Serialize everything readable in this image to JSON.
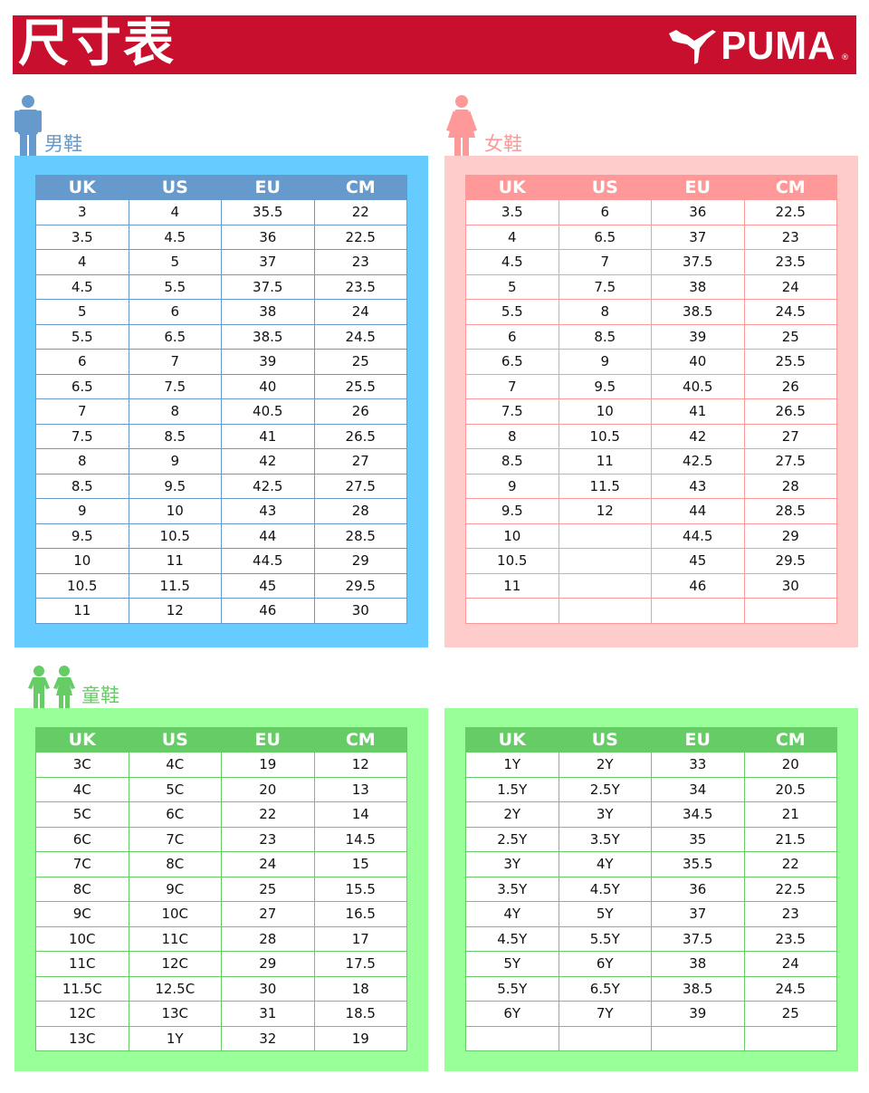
{
  "header": {
    "title": "尺寸表",
    "logo": "PUMA",
    "logo_mark": "®",
    "bg": "#c8102e"
  },
  "columns": [
    "UK",
    "US",
    "EU",
    "CM"
  ],
  "men": {
    "label": "男鞋",
    "panel_color": "#66ccff",
    "header_color": "#6699cc",
    "rows": [
      [
        "3",
        "4",
        "35.5",
        "22"
      ],
      [
        "3.5",
        "4.5",
        "36",
        "22.5"
      ],
      [
        "4",
        "5",
        "37",
        "23"
      ],
      [
        "4.5",
        "5.5",
        "37.5",
        "23.5"
      ],
      [
        "5",
        "6",
        "38",
        "24"
      ],
      [
        "5.5",
        "6.5",
        "38.5",
        "24.5"
      ],
      [
        "6",
        "7",
        "39",
        "25"
      ],
      [
        "6.5",
        "7.5",
        "40",
        "25.5"
      ],
      [
        "7",
        "8",
        "40.5",
        "26"
      ],
      [
        "7.5",
        "8.5",
        "41",
        "26.5"
      ],
      [
        "8",
        "9",
        "42",
        "27"
      ],
      [
        "8.5",
        "9.5",
        "42.5",
        "27.5"
      ],
      [
        "9",
        "10",
        "43",
        "28"
      ],
      [
        "9.5",
        "10.5",
        "44",
        "28.5"
      ],
      [
        "10",
        "11",
        "44.5",
        "29"
      ],
      [
        "10.5",
        "11.5",
        "45",
        "29.5"
      ],
      [
        "11",
        "12",
        "46",
        "30"
      ]
    ]
  },
  "women": {
    "label": "女鞋",
    "panel_color": "#ffcccc",
    "header_color": "#ff9999",
    "rows": [
      [
        "3.5",
        "6",
        "36",
        "22.5"
      ],
      [
        "4",
        "6.5",
        "37",
        "23"
      ],
      [
        "4.5",
        "7",
        "37.5",
        "23.5"
      ],
      [
        "5",
        "7.5",
        "38",
        "24"
      ],
      [
        "5.5",
        "8",
        "38.5",
        "24.5"
      ],
      [
        "6",
        "8.5",
        "39",
        "25"
      ],
      [
        "6.5",
        "9",
        "40",
        "25.5"
      ],
      [
        "7",
        "9.5",
        "40.5",
        "26"
      ],
      [
        "7.5",
        "10",
        "41",
        "26.5"
      ],
      [
        "8",
        "10.5",
        "42",
        "27"
      ],
      [
        "8.5",
        "11",
        "42.5",
        "27.5"
      ],
      [
        "9",
        "11.5",
        "43",
        "28"
      ],
      [
        "9.5",
        "12",
        "44",
        "28.5"
      ],
      [
        "10",
        "",
        "44.5",
        "29"
      ],
      [
        "10.5",
        "",
        "45",
        "29.5"
      ],
      [
        "11",
        "",
        "46",
        "30"
      ],
      [
        "",
        "",
        "",
        ""
      ]
    ]
  },
  "kids": {
    "label": "童鞋",
    "panel_color": "#99ff99",
    "header_color": "#66cc66",
    "rows_left": [
      [
        "3C",
        "4C",
        "19",
        "12"
      ],
      [
        "4C",
        "5C",
        "20",
        "13"
      ],
      [
        "5C",
        "6C",
        "22",
        "14"
      ],
      [
        "6C",
        "7C",
        "23",
        "14.5"
      ],
      [
        "7C",
        "8C",
        "24",
        "15"
      ],
      [
        "8C",
        "9C",
        "25",
        "15.5"
      ],
      [
        "9C",
        "10C",
        "27",
        "16.5"
      ],
      [
        "10C",
        "11C",
        "28",
        "17"
      ],
      [
        "11C",
        "12C",
        "29",
        "17.5"
      ],
      [
        "11.5C",
        "12.5C",
        "30",
        "18"
      ],
      [
        "12C",
        "13C",
        "31",
        "18.5"
      ],
      [
        "13C",
        "1Y",
        "32",
        "19"
      ]
    ],
    "rows_right": [
      [
        "1Y",
        "2Y",
        "33",
        "20"
      ],
      [
        "1.5Y",
        "2.5Y",
        "34",
        "20.5"
      ],
      [
        "2Y",
        "3Y",
        "34.5",
        "21"
      ],
      [
        "2.5Y",
        "3.5Y",
        "35",
        "21.5"
      ],
      [
        "3Y",
        "4Y",
        "35.5",
        "22"
      ],
      [
        "3.5Y",
        "4.5Y",
        "36",
        "22.5"
      ],
      [
        "4Y",
        "5Y",
        "37",
        "23"
      ],
      [
        "4.5Y",
        "5.5Y",
        "37.5",
        "23.5"
      ],
      [
        "5Y",
        "6Y",
        "38",
        "24"
      ],
      [
        "5.5Y",
        "6.5Y",
        "38.5",
        "24.5"
      ],
      [
        "6Y",
        "7Y",
        "39",
        "25"
      ],
      [
        "",
        "",
        "",
        ""
      ]
    ]
  }
}
